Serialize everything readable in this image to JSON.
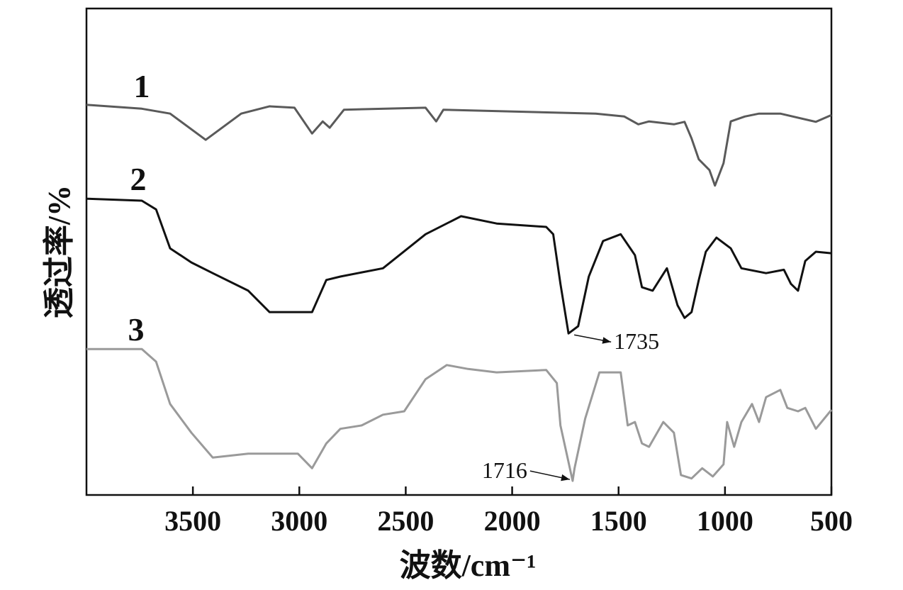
{
  "chart_data": {
    "type": "line",
    "xlabel": "波数/cm⁻¹",
    "ylabel": "透过率/%",
    "xlim": [
      4000,
      500
    ],
    "ylim": [
      0,
      100
    ],
    "xticks": [
      3500,
      3000,
      2500,
      2000,
      1500,
      1000,
      500
    ],
    "series": [
      {
        "name": "1",
        "color": "#5a5a5a",
        "x": [
          4000,
          3740,
          3607,
          3440,
          3273,
          3140,
          3023,
          2940,
          2890,
          2857,
          2790,
          2407,
          2357,
          2323,
          1607,
          1473,
          1407,
          1357,
          1240,
          1190,
          1157,
          1123,
          1073,
          1047,
          1007,
          973,
          907,
          840,
          740,
          573,
          500
        ],
        "values": [
          80.2,
          79.4,
          78.4,
          73.0,
          78.4,
          79.9,
          79.6,
          74.3,
          76.8,
          75.5,
          79.2,
          79.6,
          76.8,
          79.2,
          78.4,
          77.8,
          76.2,
          76.8,
          76.2,
          76.7,
          73.3,
          69.0,
          66.8,
          63.6,
          68.2,
          76.8,
          77.8,
          78.4,
          78.4,
          76.7,
          78.1
        ]
      },
      {
        "name": "2",
        "color": "#111111",
        "x": [
          4000,
          3740,
          3673,
          3607,
          3507,
          3407,
          3240,
          3140,
          3007,
          2940,
          2873,
          2807,
          2607,
          2407,
          2240,
          2073,
          1840,
          1807,
          1773,
          1735,
          1690,
          1640,
          1573,
          1490,
          1423,
          1390,
          1340,
          1273,
          1223,
          1190,
          1157,
          1123,
          1090,
          1040,
          973,
          923,
          807,
          723,
          690,
          657,
          623,
          573,
          500
        ],
        "values": [
          60.9,
          60.5,
          58.7,
          50.7,
          47.8,
          45.6,
          42.0,
          37.6,
          37.6,
          37.6,
          44.2,
          44.9,
          46.6,
          53.6,
          57.3,
          55.8,
          55.1,
          53.6,
          43.4,
          33.2,
          34.7,
          44.9,
          52.2,
          53.6,
          49.3,
          42.7,
          42.0,
          46.6,
          39.0,
          36.4,
          37.6,
          44.2,
          50.0,
          52.9,
          50.7,
          46.6,
          45.6,
          46.3,
          43.4,
          42.0,
          48.1,
          50.0,
          49.7
        ]
      },
      {
        "name": "3",
        "color": "#9a9a9a",
        "x": [
          4000,
          3740,
          3673,
          3607,
          3507,
          3407,
          3240,
          3007,
          2940,
          2873,
          2807,
          2707,
          2607,
          2507,
          2407,
          2307,
          2207,
          2073,
          1840,
          1790,
          1773,
          1716,
          1707,
          1657,
          1590,
          1490,
          1457,
          1423,
          1390,
          1357,
          1290,
          1240,
          1207,
          1157,
          1107,
          1057,
          1007,
          990,
          957,
          923,
          873,
          840,
          807,
          740,
          707,
          657,
          623,
          573,
          500
        ],
        "values": [
          30.0,
          30.0,
          27.4,
          18.7,
          12.8,
          7.7,
          8.5,
          8.5,
          5.5,
          10.6,
          13.6,
          14.3,
          16.5,
          17.2,
          23.8,
          26.7,
          25.9,
          25.2,
          25.7,
          23.0,
          14.3,
          2.9,
          5.5,
          15.7,
          25.2,
          25.2,
          14.3,
          15.0,
          10.6,
          9.9,
          15.0,
          12.8,
          4.1,
          3.4,
          5.5,
          3.8,
          6.3,
          15.0,
          9.9,
          15.0,
          18.7,
          15.0,
          20.1,
          21.6,
          17.9,
          17.2,
          17.9,
          13.6,
          17.5
        ]
      }
    ],
    "annotations": [
      {
        "text": "1735",
        "x": 1735,
        "series": 1
      },
      {
        "text": "1716",
        "x": 1716,
        "series": 2
      }
    ]
  }
}
